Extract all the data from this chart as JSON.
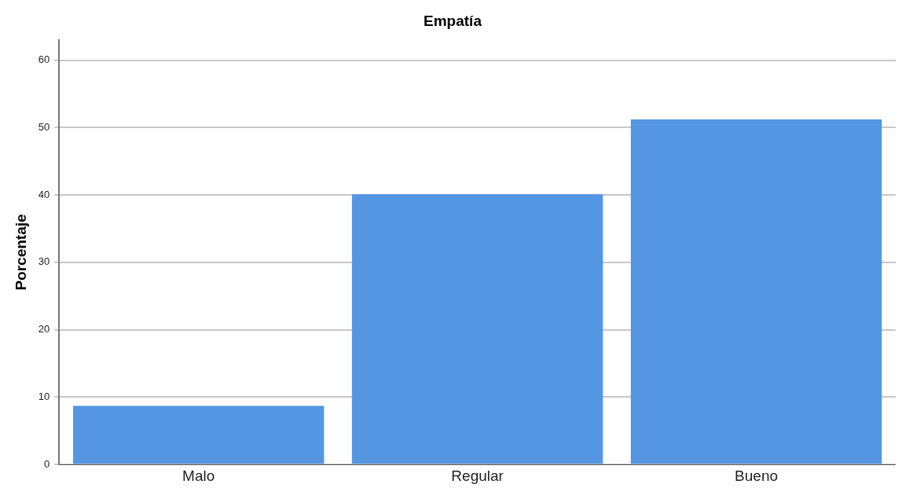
{
  "chart_data": {
    "type": "bar",
    "title": "Empatía",
    "ylabel": "Porcentaje",
    "categories": [
      "Malo",
      "Regular",
      "Bueno"
    ],
    "values": [
      8.7,
      40.1,
      51.2
    ],
    "color": "#5596e3",
    "ylim": [
      0,
      63
    ],
    "yticks": [
      0,
      10,
      20,
      30,
      40,
      50,
      60
    ],
    "grid": "y"
  }
}
